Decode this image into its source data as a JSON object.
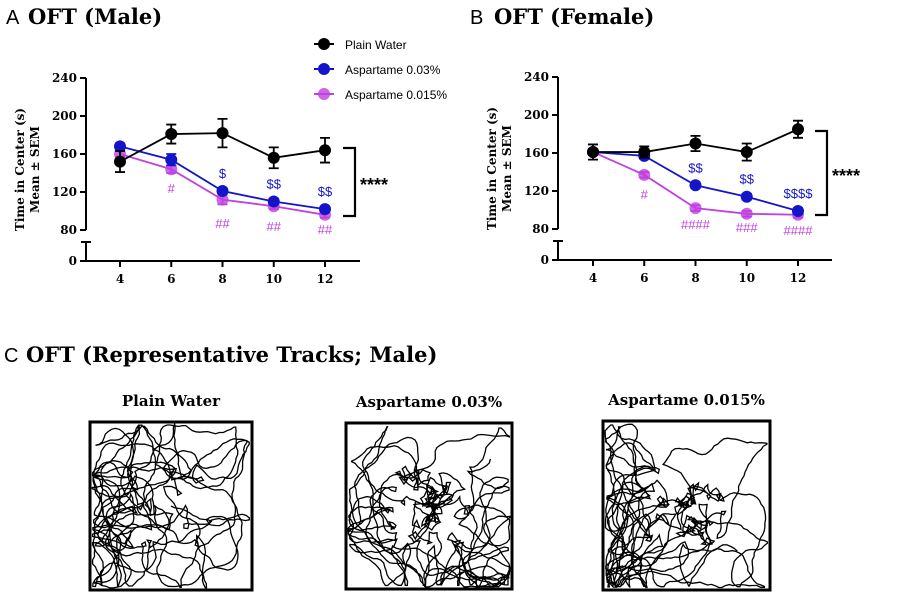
{
  "panels": {
    "A": {
      "letter": "A",
      "title": "OFT (Male)"
    },
    "B": {
      "letter": "B",
      "title": "OFT (Female)"
    },
    "C": {
      "letter": "C",
      "title": "OFT (Representative Tracks; Male)"
    }
  },
  "colors": {
    "plain": "#000000",
    "asp003": "#1414c8",
    "asp0015": "#c040e0"
  },
  "chart_data": [
    {
      "type": "line",
      "title": "OFT (Male)",
      "ylabel": "Time in Center (s)\nMean ± SEM",
      "ylabel_lines": [
        "Time in Center (s)",
        "Mean ± SEM"
      ],
      "xlabel": "",
      "x": [
        4,
        6,
        8,
        10,
        12
      ],
      "yticks": [
        0,
        80,
        120,
        160,
        200,
        240
      ],
      "ylim": [
        0,
        240
      ],
      "axis_break": [
        0,
        80
      ],
      "legend_placement": "top-right",
      "series": [
        {
          "name": "Plain Water",
          "color": "#000000",
          "values": [
            152,
            181,
            182,
            156,
            164
          ],
          "sem": [
            11,
            10,
            15,
            11,
            13
          ]
        },
        {
          "name": "Aspartame 0.03%",
          "color": "#1414c8",
          "values": [
            168,
            154,
            121,
            110,
            102
          ],
          "sem": [
            3,
            6,
            3,
            3,
            3
          ]
        },
        {
          "name": "Aspartame 0.015%",
          "color": "#c040e0",
          "values": [
            160,
            144,
            112,
            105,
            96
          ],
          "sem": [
            3,
            4,
            5,
            3,
            3
          ]
        }
      ],
      "annotations": {
        "asp003": [
          "",
          "",
          "$",
          "$$",
          "$$"
        ],
        "asp0015": [
          "",
          "#",
          "##",
          "##",
          "##"
        ],
        "bracket": "****"
      }
    },
    {
      "type": "line",
      "title": "OFT (Female)",
      "ylabel_lines": [
        "Time in Center (s)",
        "Mean ± SEM"
      ],
      "xlabel": "",
      "x": [
        4,
        6,
        8,
        10,
        12
      ],
      "yticks": [
        0,
        80,
        120,
        160,
        200,
        240
      ],
      "ylim": [
        0,
        240
      ],
      "axis_break": [
        0,
        80
      ],
      "series": [
        {
          "name": "Plain Water",
          "color": "#000000",
          "values": [
            161,
            161,
            170,
            161,
            185
          ],
          "sem": [
            8,
            6,
            8,
            9,
            9
          ]
        },
        {
          "name": "Aspartame 0.03%",
          "color": "#1414c8",
          "values": [
            161,
            157,
            126,
            114,
            99
          ],
          "sem": [
            3,
            3,
            3,
            3,
            3
          ]
        },
        {
          "name": "Aspartame 0.015%",
          "color": "#c040e0",
          "values": [
            161,
            137,
            102,
            96,
            95
          ],
          "sem": [
            3,
            3,
            3,
            3,
            3
          ]
        }
      ],
      "annotations": {
        "asp003": [
          "",
          "",
          "$$",
          "$$",
          "$$$$"
        ],
        "asp0015": [
          "",
          "#",
          "####",
          "###",
          "####"
        ],
        "bracket": "****"
      }
    }
  ],
  "tracks": [
    {
      "label": "Plain Water"
    },
    {
      "label": "Aspartame 0.03%"
    },
    {
      "label": "Aspartame 0.015%"
    }
  ]
}
